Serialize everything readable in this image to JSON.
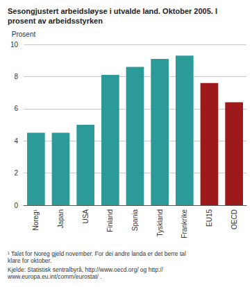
{
  "chart_data": {
    "type": "bar",
    "title": "Sesongjustert arbeidsløyse i utvalde land. Oktober 2005. I prosent av arbeidsstyrken",
    "y_label": "Prosent",
    "categories": [
      "Noreg¹",
      "Japan",
      "USA",
      "Finland",
      "Spania",
      "Tyskland",
      "Frankrike",
      "EU15",
      "OECD"
    ],
    "values": [
      4.5,
      4.5,
      5.0,
      8.1,
      8.6,
      9.1,
      9.3,
      7.6,
      6.4
    ],
    "colors": [
      "#2b9a98",
      "#2b9a98",
      "#2b9a98",
      "#2b9a98",
      "#2b9a98",
      "#2b9a98",
      "#2b9a98",
      "#9e1a1a",
      "#9e1a1a"
    ],
    "ylim": [
      0,
      10
    ],
    "yticks": [
      0,
      2,
      4,
      6,
      8,
      10
    ],
    "grid": true,
    "footnote": "¹ Talet for Noreg gjeld november. For dei andre landa er det berre tal klare for oktober.",
    "source": "Kjelde: Statistisk sentralbyrå, http://www.oecd.org/ og http://www.europa.eu.int/comm/eurostat/ ."
  }
}
